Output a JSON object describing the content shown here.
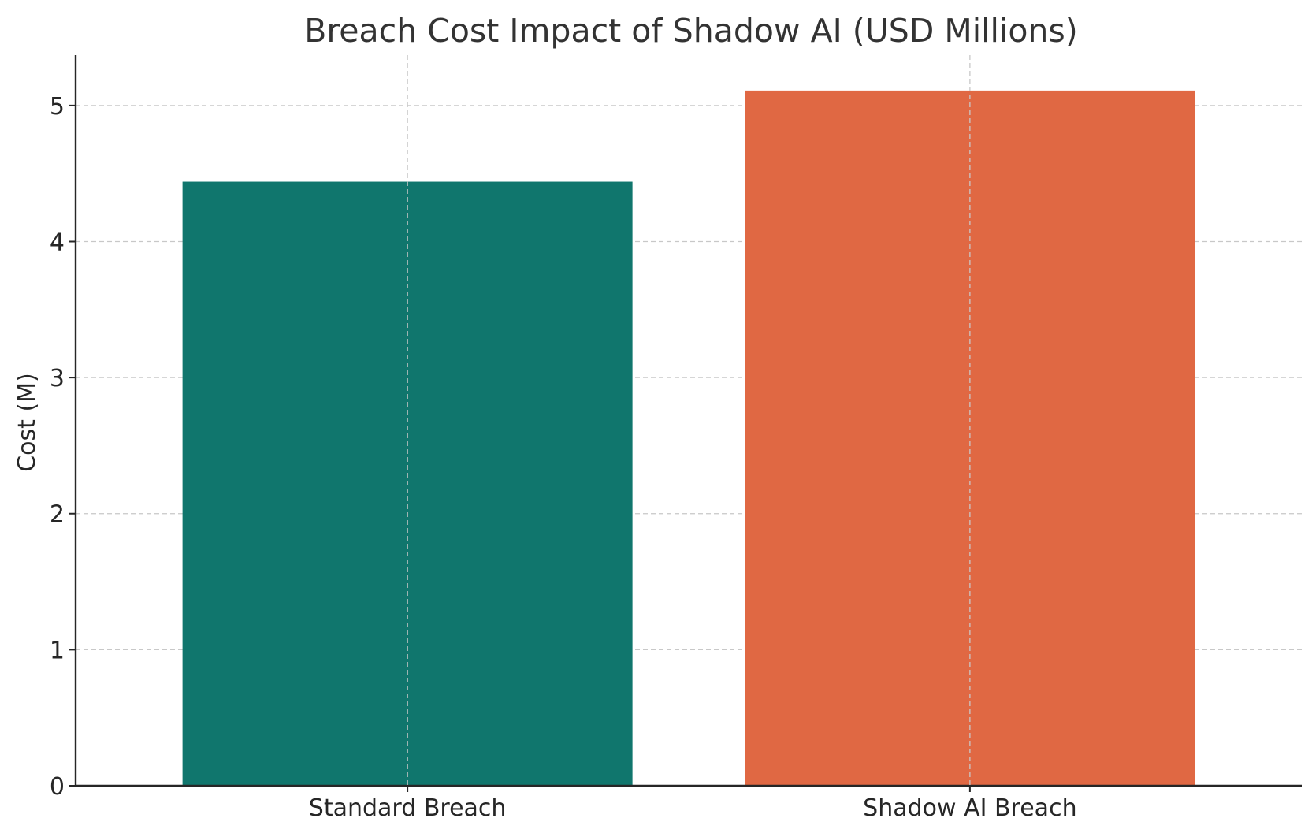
{
  "chart_data": {
    "type": "bar",
    "title": "Breach Cost Impact of Shadow AI (USD Millions)",
    "xlabel": "",
    "ylabel": "Cost (M)",
    "categories": [
      "Standard Breach",
      "Shadow AI Breach"
    ],
    "values": [
      4.44,
      5.11
    ],
    "colors": [
      "#10766d",
      "#e06843"
    ],
    "ylim": [
      0,
      5.37
    ],
    "yticks": [
      0,
      1,
      2,
      3,
      4,
      5
    ],
    "grid": true,
    "legend": "none"
  }
}
